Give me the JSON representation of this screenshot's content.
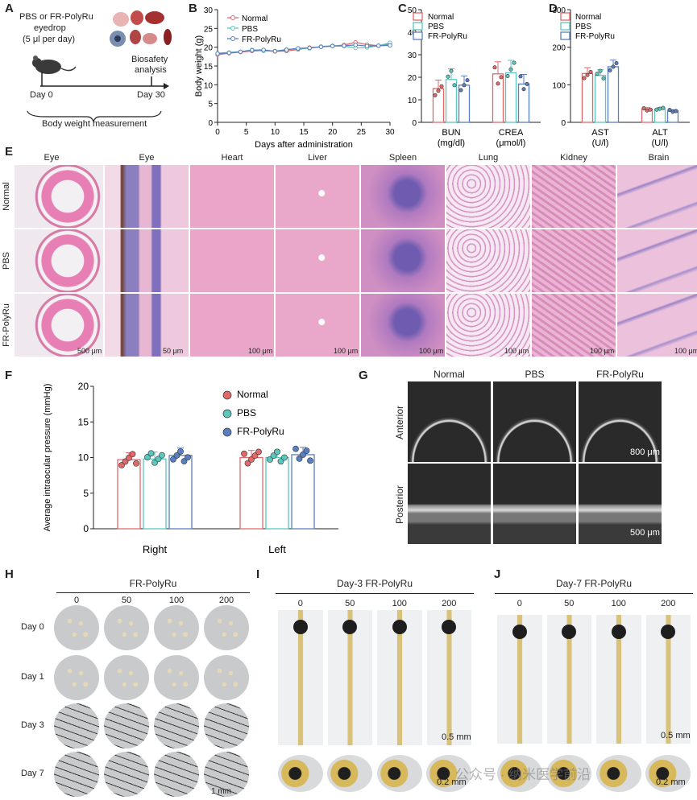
{
  "panels": {
    "A": "A",
    "B": "B",
    "C": "C",
    "D": "D",
    "E": "E",
    "F": "F",
    "G": "G",
    "H": "H",
    "I": "I",
    "J": "J"
  },
  "panelA": {
    "treat_line1": "PBS or  FR-PolyRu",
    "treat_line2": "eyedrop",
    "treat_line3": "(5 μl per day)",
    "biosafety1": "Biosafety",
    "biosafety2": "analysis",
    "day0": "Day 0",
    "day30": "Day 30",
    "bw": "Body weight measurement"
  },
  "colors": {
    "normal": "#e0696a",
    "pbs": "#5cc7bd",
    "frpolyru": "#5a7fc0",
    "he_pink": "#e9a9c9",
    "he_purple": "#7a63b5",
    "oct_dark": "#262626"
  },
  "chart_data": [
    {
      "id": "B",
      "type": "line",
      "xlabel": "Days after administration",
      "ylabel": "Body weight (g)",
      "xlim": [
        0,
        30
      ],
      "ylim": [
        0,
        30
      ],
      "xticks": [
        0,
        5,
        10,
        15,
        20,
        25,
        30
      ],
      "yticks": [
        0,
        5,
        10,
        15,
        20,
        25,
        30
      ],
      "x": [
        0,
        2,
        4,
        6,
        8,
        10,
        12,
        14,
        16,
        18,
        20,
        22,
        24,
        26,
        28,
        30
      ],
      "series": [
        {
          "name": "Normal",
          "values": [
            18.0,
            18.4,
            18.7,
            19.0,
            19.1,
            18.9,
            19.0,
            19.4,
            19.9,
            20.1,
            20.3,
            20.6,
            21.3,
            20.7,
            20.4,
            20.9
          ]
        },
        {
          "name": "PBS",
          "values": [
            18.4,
            18.6,
            18.8,
            19.3,
            19.0,
            19.0,
            19.4,
            19.6,
            19.7,
            20.2,
            20.4,
            20.3,
            19.8,
            19.9,
            20.4,
            21.2
          ]
        },
        {
          "name": "FR-PolyRu",
          "values": [
            18.3,
            18.5,
            18.8,
            19.2,
            19.3,
            18.9,
            19.3,
            19.7,
            19.8,
            20.1,
            20.3,
            20.4,
            20.6,
            20.3,
            20.4,
            20.5
          ]
        }
      ]
    },
    {
      "id": "C",
      "type": "bar",
      "categories": [
        "BUN\n(mg/dl)",
        "CREA\n(μmol/l)"
      ],
      "ylim": [
        0,
        50
      ],
      "yticks": [
        0,
        10,
        20,
        30,
        40,
        50
      ],
      "series": [
        {
          "name": "Normal",
          "values": [
            15,
            21.5
          ]
        },
        {
          "name": "PBS",
          "values": [
            19,
            22
          ]
        },
        {
          "name": "FR-PolyRu",
          "values": [
            16.5,
            17
          ]
        }
      ]
    },
    {
      "id": "D",
      "type": "bar",
      "categories": [
        "AST\n(U/l)",
        "ALT\n(U/l)"
      ],
      "ylim": [
        0,
        300
      ],
      "yticks": [
        0,
        100,
        200,
        300
      ],
      "series": [
        {
          "name": "Normal",
          "values": [
            130,
            35
          ]
        },
        {
          "name": "PBS",
          "values": [
            125,
            35
          ]
        },
        {
          "name": "FR-PolyRu",
          "values": [
            148,
            30
          ]
        }
      ]
    },
    {
      "id": "F",
      "type": "bar",
      "categories": [
        "Right",
        "Left"
      ],
      "ylabel": "Average intraocular pressure (mmHg)",
      "ylim": [
        0,
        20
      ],
      "yticks": [
        0,
        5,
        10,
        15,
        20
      ],
      "series": [
        {
          "name": "Normal",
          "values": [
            9.7,
            10.0
          ]
        },
        {
          "name": "PBS",
          "values": [
            9.8,
            10.0
          ]
        },
        {
          "name": "FR-PolyRu",
          "values": [
            10.3,
            10.4
          ]
        }
      ]
    }
  ],
  "legend": {
    "normal": "Normal",
    "pbs": "PBS",
    "frpolyru": "FR-PolyRu"
  },
  "panelE": {
    "cols": [
      "Eye",
      "Eye",
      "Heart",
      "Liver",
      "Spleen",
      "Lung",
      "Kidney",
      "Brain"
    ],
    "rows": [
      "Normal",
      "PBS",
      "FR-PolyRu"
    ],
    "scales": [
      "500 μm",
      "50 μm",
      "100 μm",
      "100 μm",
      "100 μm",
      "100 μm",
      "100 μm",
      "100 μm"
    ]
  },
  "panelG": {
    "cols": [
      "Normal",
      "PBS",
      "FR-PolyRu"
    ],
    "rows": [
      "Anterior",
      "Posterior"
    ],
    "scale_anterior": "800 μm",
    "scale_posterior": "500 μm"
  },
  "panelH": {
    "title": "FR-PolyRu",
    "doses": [
      "0",
      "50",
      "100",
      "200"
    ],
    "days": [
      "Day 0",
      "Day 1",
      "Day 3",
      "Day 7"
    ],
    "scale": "1 mm"
  },
  "panelI": {
    "title": "Day-3 FR-PolyRu",
    "doses": [
      "0",
      "50",
      "100",
      "200"
    ],
    "scale_main": "0.5 mm",
    "scale_zoom": "0.2 mm"
  },
  "panelJ": {
    "title": "Day-7 FR-PolyRu",
    "doses": [
      "0",
      "50",
      "100",
      "200"
    ],
    "scale_main": "0.5 mm",
    "scale_zoom": "0.2 mm"
  },
  "watermark": "公众号 · 纳米医学前沿"
}
